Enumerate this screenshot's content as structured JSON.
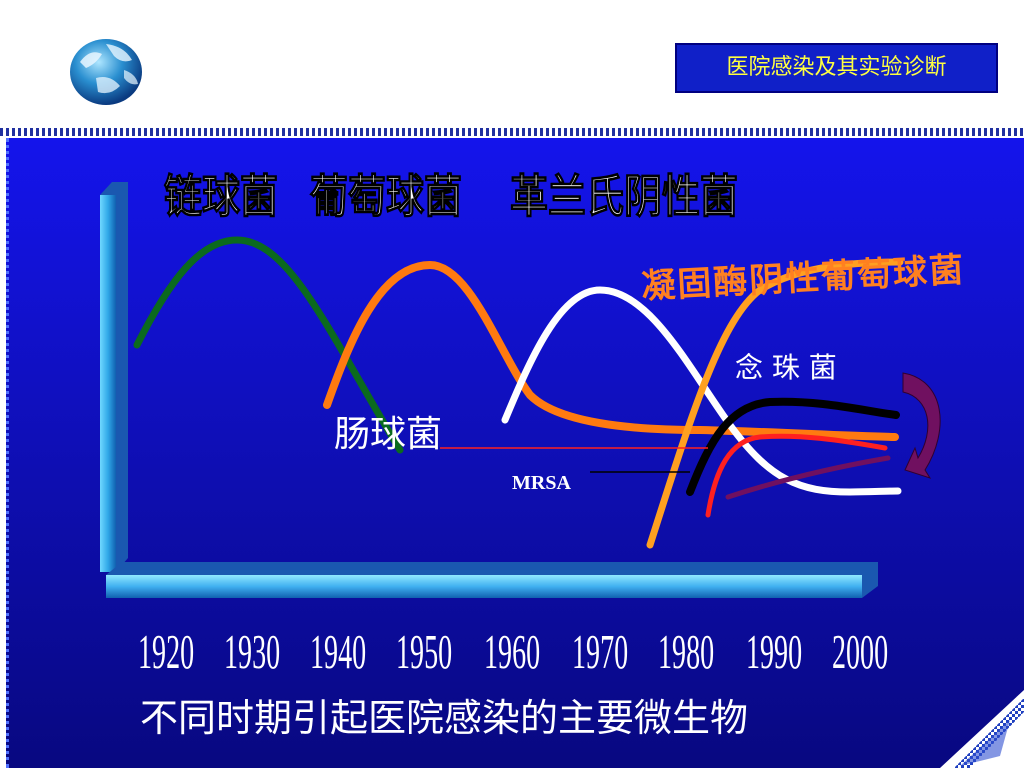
{
  "header": {
    "course_title": "医院感染及其实验诊断",
    "logo_icon": "globe-icon"
  },
  "diagram": {
    "title_words": [
      "链球菌",
      "葡萄球菌",
      "革兰氏阴性菌"
    ],
    "cons_label": "凝固酶阴性葡萄球菌",
    "candida_label": "念 珠 菌",
    "enterococcus_label": "肠球菌",
    "mrsa_label": "MRSA",
    "years": [
      "1920",
      "1930",
      "1940",
      "1950",
      "1960",
      "1970",
      "1980",
      "1990",
      "2000"
    ],
    "caption": "不同时期引起医院感染的主要微生物",
    "colors": {
      "background": "#1414ec",
      "streptococcus": "#0b6a1e",
      "staphylococcus": "#ff7a10",
      "gram_negative": "#ffffff",
      "cons": "#ffa020",
      "candida": "#000000",
      "enterococcus": "#ff2020",
      "mrsa": "#701060",
      "course_text": "#ffff40"
    }
  }
}
